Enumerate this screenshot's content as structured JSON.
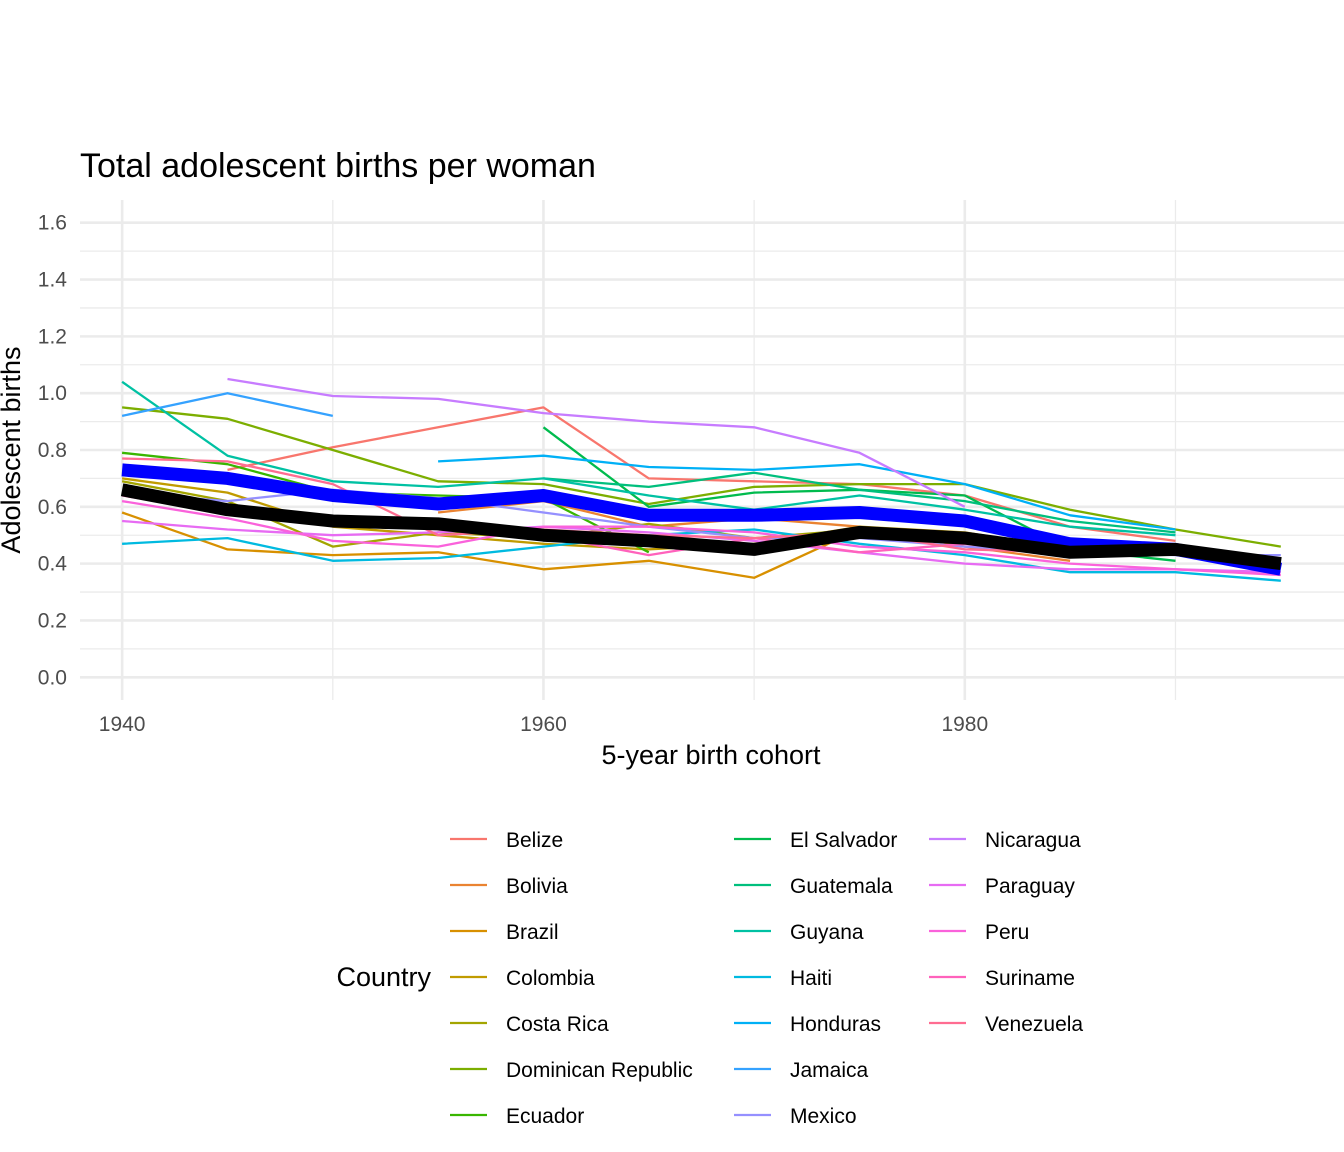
{
  "chart_data": {
    "type": "line",
    "title": "Total adolescent births per woman",
    "xlabel": "5-year birth cohort",
    "ylabel": "Adolescent births",
    "xlim": [
      1938,
      1998
    ],
    "ylim": [
      -0.08,
      1.68
    ],
    "x_ticks": [
      1940,
      1960,
      1980
    ],
    "y_ticks": [
      0.0,
      0.2,
      0.4,
      0.6,
      0.8,
      1.0,
      1.2,
      1.4,
      1.6
    ],
    "x_tick_labels": [
      "1940",
      "1960",
      "1980"
    ],
    "y_tick_labels": [
      "0.0",
      "0.2",
      "0.4",
      "0.6",
      "0.8",
      "1.0",
      "1.2",
      "1.4",
      "1.6"
    ],
    "grid": true,
    "legend": {
      "title": "Country",
      "position": "bottom"
    },
    "series": [
      {
        "name": "Belize",
        "color": "#F8766D",
        "points": [
          [
            1945,
            0.73
          ],
          [
            1950,
            0.81
          ],
          [
            1955,
            0.88
          ],
          [
            1960,
            0.95
          ],
          [
            1965,
            0.7
          ],
          [
            1970,
            0.69
          ],
          [
            1975,
            0.68
          ],
          [
            1980,
            0.64
          ],
          [
            1985,
            0.53
          ],
          [
            1990,
            0.48
          ]
        ]
      },
      {
        "name": "Bolivia",
        "color": "#EA8331",
        "points": [
          [
            1955,
            0.58
          ],
          [
            1960,
            0.62
          ],
          [
            1965,
            0.53
          ],
          [
            1970,
            0.56
          ],
          [
            1975,
            0.53
          ],
          [
            1980,
            0.46
          ],
          [
            1985,
            0.41
          ]
        ]
      },
      {
        "name": "Brazil",
        "color": "#D89000",
        "points": [
          [
            1940,
            0.58
          ],
          [
            1945,
            0.45
          ],
          [
            1950,
            0.43
          ],
          [
            1955,
            0.44
          ],
          [
            1960,
            0.38
          ],
          [
            1965,
            0.41
          ],
          [
            1970,
            0.35
          ],
          [
            1975,
            0.52
          ],
          [
            1980,
            0.49
          ],
          [
            1985,
            0.43
          ],
          [
            1990,
            0.44
          ]
        ]
      },
      {
        "name": "Colombia",
        "color": "#C09B00",
        "points": [
          [
            1940,
            0.7
          ],
          [
            1945,
            0.65
          ],
          [
            1950,
            0.53
          ],
          [
            1955,
            0.5
          ],
          [
            1960,
            0.47
          ],
          [
            1965,
            0.45
          ],
          [
            1970,
            0.47
          ],
          [
            1975,
            0.53
          ],
          [
            1980,
            0.51
          ],
          [
            1985,
            0.45
          ],
          [
            1990,
            0.45
          ]
        ]
      },
      {
        "name": "Costa Rica",
        "color": "#A3A500",
        "points": [
          [
            1940,
            0.69
          ],
          [
            1945,
            0.62
          ],
          [
            1950,
            0.46
          ],
          [
            1955,
            0.51
          ],
          [
            1960,
            0.49
          ],
          [
            1965,
            0.54
          ],
          [
            1970,
            0.49
          ],
          [
            1975,
            0.52
          ],
          [
            1980,
            0.48
          ],
          [
            1985,
            0.44
          ],
          [
            1990,
            0.45
          ]
        ]
      },
      {
        "name": "Dominican Republic",
        "color": "#7CAE00",
        "points": [
          [
            1940,
            0.95
          ],
          [
            1945,
            0.91
          ],
          [
            1950,
            0.8
          ],
          [
            1955,
            0.69
          ],
          [
            1960,
            0.68
          ],
          [
            1965,
            0.61
          ],
          [
            1970,
            0.67
          ],
          [
            1975,
            0.68
          ],
          [
            1980,
            0.68
          ],
          [
            1985,
            0.59
          ],
          [
            1990,
            0.52
          ],
          [
            1995,
            0.46
          ]
        ]
      },
      {
        "name": "Ecuador",
        "color": "#39B600",
        "points": [
          [
            1940,
            0.79
          ],
          [
            1945,
            0.75
          ],
          [
            1950,
            0.65
          ],
          [
            1955,
            0.64
          ],
          [
            1960,
            0.63
          ],
          [
            1965,
            0.44
          ]
        ]
      },
      {
        "name": "El Salvador",
        "color": "#00BB4E",
        "points": [
          [
            1960,
            0.88
          ],
          [
            1965,
            0.6
          ],
          [
            1970,
            0.65
          ],
          [
            1975,
            0.66
          ],
          [
            1980,
            0.64
          ],
          [
            1985,
            0.45
          ],
          [
            1990,
            0.41
          ]
        ]
      },
      {
        "name": "Guatemala",
        "color": "#00BF7D",
        "points": [
          [
            1960,
            0.7
          ],
          [
            1965,
            0.67
          ],
          [
            1970,
            0.72
          ],
          [
            1975,
            0.66
          ],
          [
            1980,
            0.62
          ],
          [
            1985,
            0.55
          ],
          [
            1990,
            0.51
          ]
        ]
      },
      {
        "name": "Guyana",
        "color": "#00C1A3",
        "points": [
          [
            1940,
            1.04
          ],
          [
            1945,
            0.78
          ],
          [
            1950,
            0.69
          ],
          [
            1955,
            0.67
          ],
          [
            1960,
            0.7
          ],
          [
            1965,
            0.64
          ],
          [
            1970,
            0.59
          ],
          [
            1975,
            0.64
          ],
          [
            1980,
            0.59
          ],
          [
            1985,
            0.53
          ],
          [
            1990,
            0.5
          ]
        ]
      },
      {
        "name": "Haiti",
        "color": "#00BAE0",
        "points": [
          [
            1940,
            0.47
          ],
          [
            1945,
            0.49
          ],
          [
            1950,
            0.41
          ],
          [
            1955,
            0.42
          ],
          [
            1960,
            0.46
          ],
          [
            1965,
            0.5
          ],
          [
            1970,
            0.52
          ],
          [
            1975,
            0.47
          ],
          [
            1980,
            0.43
          ],
          [
            1985,
            0.37
          ],
          [
            1990,
            0.37
          ],
          [
            1995,
            0.34
          ]
        ]
      },
      {
        "name": "Honduras",
        "color": "#00B0F6",
        "points": [
          [
            1955,
            0.76
          ],
          [
            1960,
            0.78
          ],
          [
            1965,
            0.74
          ],
          [
            1970,
            0.73
          ],
          [
            1975,
            0.75
          ],
          [
            1980,
            0.68
          ],
          [
            1985,
            0.57
          ],
          [
            1990,
            0.52
          ]
        ]
      },
      {
        "name": "Jamaica",
        "color": "#35A2FF",
        "points": [
          [
            1940,
            0.92
          ],
          [
            1945,
            1.0
          ],
          [
            1950,
            0.92
          ]
        ]
      },
      {
        "name": "Mexico",
        "color": "#9590FF",
        "points": [
          [
            1940,
            0.65
          ],
          [
            1945,
            0.62
          ],
          [
            1950,
            0.66
          ],
          [
            1955,
            0.63
          ],
          [
            1960,
            0.58
          ],
          [
            1965,
            0.53
          ],
          [
            1970,
            0.49
          ],
          [
            1975,
            0.49
          ],
          [
            1980,
            0.46
          ],
          [
            1985,
            0.44
          ],
          [
            1990,
            0.43
          ],
          [
            1995,
            0.43
          ]
        ]
      },
      {
        "name": "Nicaragua",
        "color": "#C77CFF",
        "points": [
          [
            1945,
            1.05
          ],
          [
            1950,
            0.99
          ],
          [
            1955,
            0.98
          ],
          [
            1960,
            0.93
          ],
          [
            1965,
            0.9
          ],
          [
            1970,
            0.88
          ],
          [
            1975,
            0.79
          ],
          [
            1980,
            0.6
          ]
        ]
      },
      {
        "name": "Paraguay",
        "color": "#E76BF3",
        "points": [
          [
            1940,
            0.55
          ],
          [
            1945,
            0.52
          ],
          [
            1950,
            0.5
          ],
          [
            1955,
            0.51
          ],
          [
            1960,
            0.53
          ],
          [
            1965,
            0.51
          ],
          [
            1970,
            0.48
          ],
          [
            1975,
            0.44
          ],
          [
            1980,
            0.4
          ],
          [
            1985,
            0.38
          ],
          [
            1990,
            0.38
          ],
          [
            1995,
            0.37
          ]
        ]
      },
      {
        "name": "Peru",
        "color": "#FA62DB",
        "points": [
          [
            1940,
            0.62
          ],
          [
            1945,
            0.56
          ],
          [
            1950,
            0.48
          ],
          [
            1955,
            0.46
          ],
          [
            1960,
            0.53
          ],
          [
            1965,
            0.53
          ],
          [
            1970,
            0.51
          ],
          [
            1975,
            0.46
          ],
          [
            1980,
            0.44
          ],
          [
            1985,
            0.4
          ],
          [
            1990,
            0.38
          ],
          [
            1995,
            0.36
          ]
        ]
      },
      {
        "name": "Suriname",
        "color": "#FF62BC",
        "points": [
          [
            1940,
            0.64
          ],
          [
            1945,
            0.58
          ],
          [
            1950,
            0.55
          ],
          [
            1955,
            0.52
          ],
          [
            1960,
            0.5
          ],
          [
            1965,
            0.43
          ],
          [
            1970,
            0.49
          ],
          [
            1975,
            0.44
          ],
          [
            1980,
            0.47
          ],
          [
            1985,
            0.43
          ],
          [
            1990,
            0.44
          ]
        ]
      },
      {
        "name": "Venezuela",
        "color": "#FF6C91",
        "points": [
          [
            1940,
            0.77
          ],
          [
            1945,
            0.76
          ],
          [
            1950,
            0.68
          ],
          [
            1955,
            0.5
          ],
          [
            1960,
            0.52
          ],
          [
            1965,
            0.5
          ],
          [
            1970,
            0.49
          ],
          [
            1975,
            0.51
          ],
          [
            1980,
            0.45
          ],
          [
            1985,
            0.44
          ],
          [
            1990,
            0.44
          ]
        ]
      },
      {
        "color": "#0000FF",
        "points": [
          [
            1940,
            0.73
          ],
          [
            1945,
            0.7
          ],
          [
            1950,
            0.64
          ],
          [
            1955,
            0.61
          ],
          [
            1960,
            0.64
          ],
          [
            1965,
            0.57
          ],
          [
            1970,
            0.57
          ],
          [
            1975,
            0.58
          ],
          [
            1980,
            0.55
          ],
          [
            1985,
            0.47
          ],
          [
            1990,
            0.45
          ],
          [
            1995,
            0.38
          ]
        ]
      },
      {
        "color": "#000000",
        "points": [
          [
            1940,
            0.66
          ],
          [
            1945,
            0.59
          ],
          [
            1950,
            0.55
          ],
          [
            1955,
            0.54
          ],
          [
            1960,
            0.5
          ],
          [
            1965,
            0.48
          ],
          [
            1970,
            0.45
          ],
          [
            1975,
            0.51
          ],
          [
            1980,
            0.49
          ],
          [
            1985,
            0.44
          ],
          [
            1990,
            0.45
          ],
          [
            1995,
            0.4
          ]
        ]
      }
    ]
  }
}
